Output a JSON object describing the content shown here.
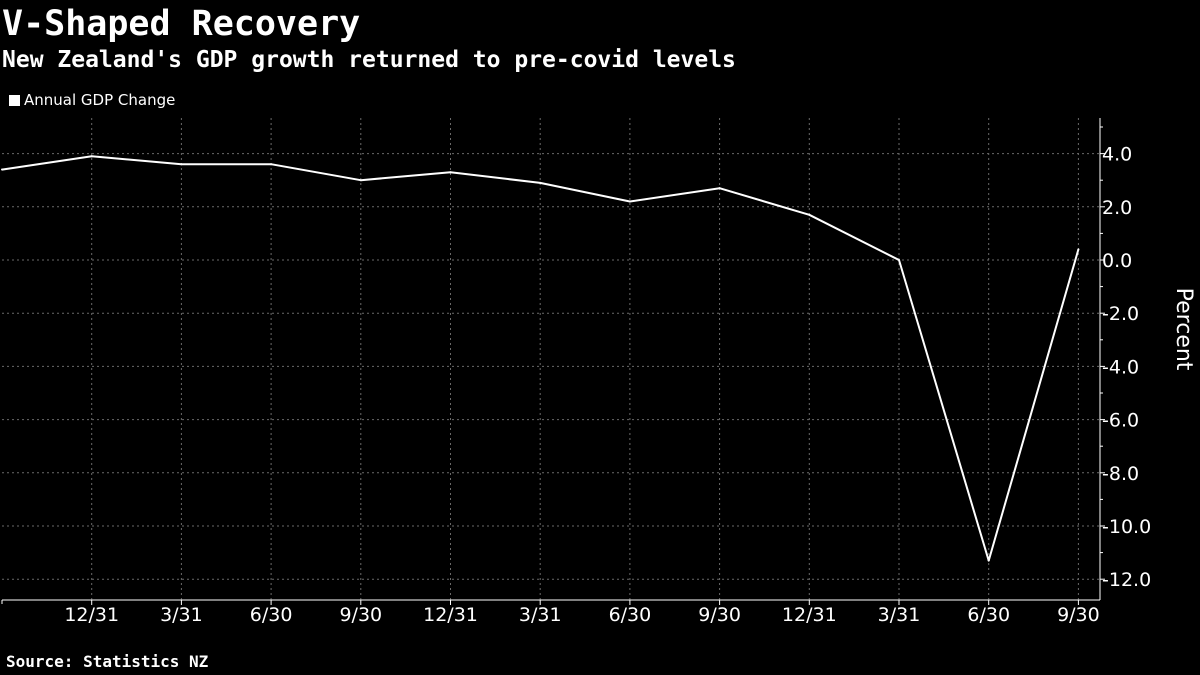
{
  "header": {
    "title": "V-Shaped Recovery",
    "subtitle": "New Zealand's GDP growth returned to pre-covid levels"
  },
  "legend": {
    "items": [
      {
        "label": "Annual GDP Change",
        "color": "#ffffff"
      }
    ],
    "placement": "top-left"
  },
  "footer": {
    "source": "Source: Statistics NZ"
  },
  "colors": {
    "background": "#000000",
    "line": "#ffffff",
    "grid": "#6a6a6a"
  },
  "chart_data": {
    "type": "line",
    "title": "V-Shaped Recovery",
    "subtitle": "New Zealand's GDP growth returned to pre-covid levels",
    "xlabel": "",
    "ylabel": "Percent",
    "y_axis_side": "right",
    "ylim": [
      -12.5,
      5.2
    ],
    "yticks": [
      4.0,
      2.0,
      0.0,
      -2.0,
      -4.0,
      -6.0,
      -8.0,
      -10.0,
      -12.0
    ],
    "ytick_labels": [
      "4.0",
      "2.0",
      "0.0",
      "-2.0",
      "-4.0",
      "-6.0",
      "-8.0",
      "-10.0",
      "-12.0"
    ],
    "grid": true,
    "x_tick_labels": [
      "12/31",
      "3/31",
      "6/30",
      "9/30",
      "12/31",
      "3/31",
      "6/30",
      "9/30",
      "12/31",
      "3/31",
      "6/30",
      "9/30"
    ],
    "x": [
      "9/30",
      "12/31",
      "3/31",
      "6/30",
      "9/30",
      "12/31",
      "3/31",
      "6/30",
      "9/30",
      "12/31",
      "3/31",
      "6/30",
      "9/30"
    ],
    "series": [
      {
        "name": "Annual GDP Change",
        "values": [
          3.4,
          3.9,
          3.6,
          3.6,
          3.0,
          3.3,
          2.9,
          2.2,
          2.7,
          1.7,
          0.0,
          -11.3,
          0.4
        ]
      }
    ]
  }
}
